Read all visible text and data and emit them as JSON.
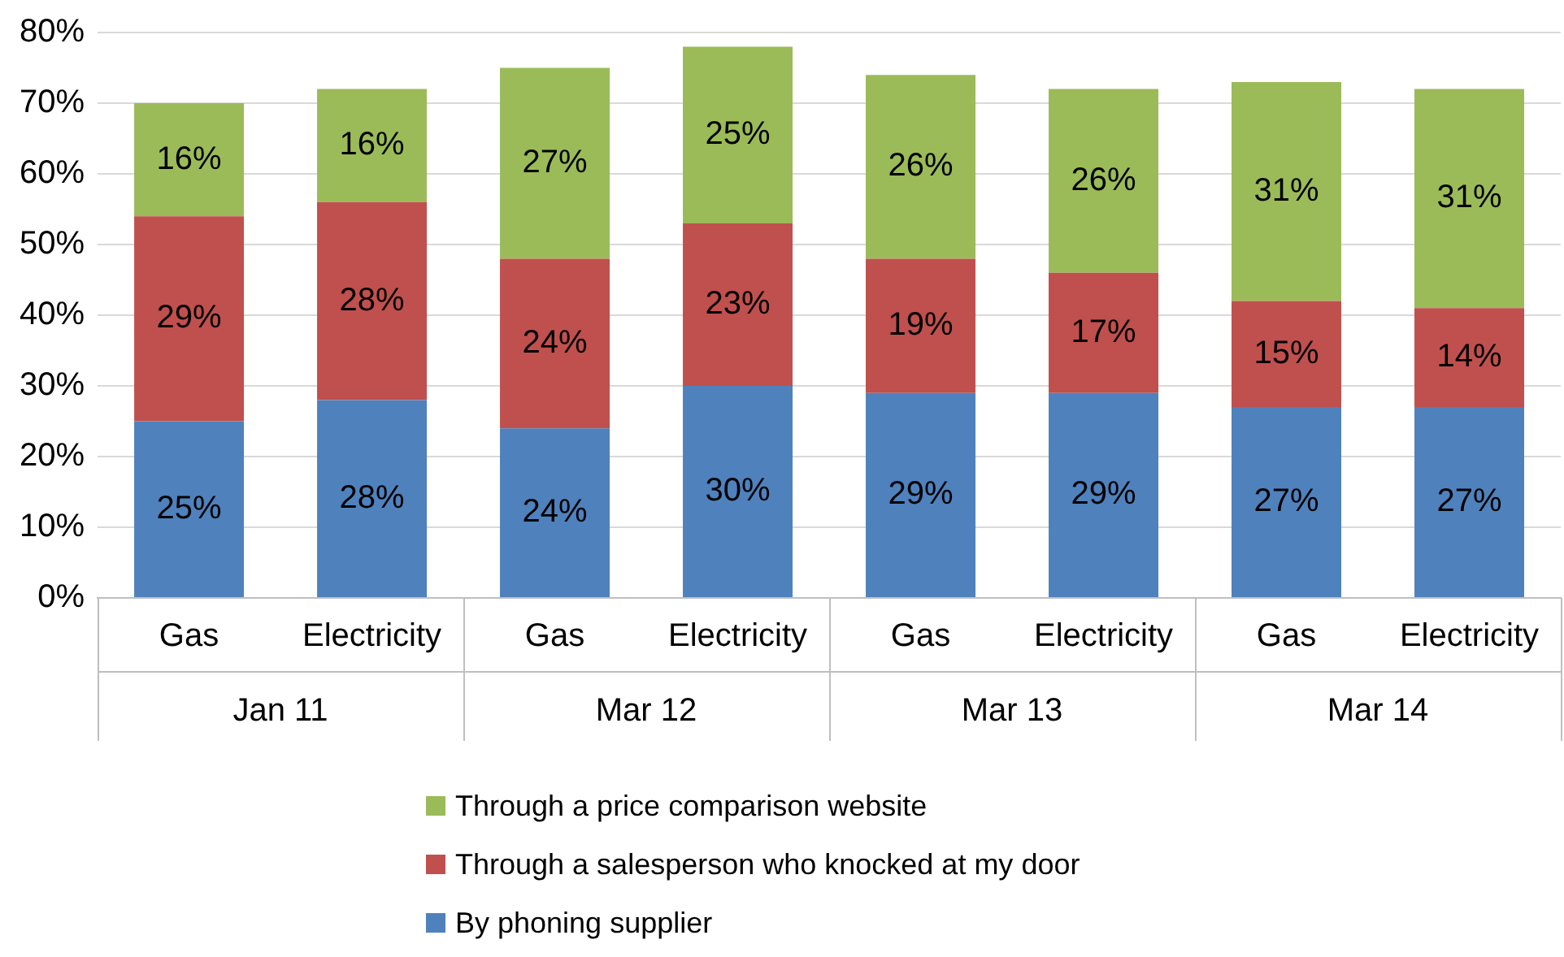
{
  "chart_data": {
    "type": "bar",
    "stacked": true,
    "categories": [
      "Gas",
      "Electricity",
      "Gas",
      "Electricity",
      "Gas",
      "Electricity",
      "Gas",
      "Electricity"
    ],
    "series": [
      {
        "name": "By phoning supplier",
        "color": "#4f81bd",
        "values": [
          25,
          28,
          24,
          30,
          29,
          29,
          27,
          27
        ],
        "value_labels": [
          "25%",
          "28%",
          "24%",
          "30%",
          "29%",
          "29%",
          "27%",
          "27%"
        ]
      },
      {
        "name": "Through a salesperson who knocked at my door",
        "color": "#c0504d",
        "values": [
          29,
          28,
          24,
          23,
          19,
          17,
          15,
          14
        ],
        "value_labels": [
          "29%",
          "28%",
          "24%",
          "23%",
          "19%",
          "17%",
          "15%",
          "14%"
        ]
      },
      {
        "name": "Through a price comparison website",
        "color": "#9bbb59",
        "values": [
          16,
          16,
          27,
          25,
          26,
          26,
          31,
          31
        ],
        "value_labels": [
          "16%",
          "16%",
          "27%",
          "25%",
          "26%",
          "26%",
          "31%",
          "31%"
        ]
      }
    ],
    "ylim": [
      0,
      80
    ],
    "yticks": [
      {
        "value": 0,
        "label": "0%"
      },
      {
        "value": 10,
        "label": "10%"
      },
      {
        "value": 20,
        "label": "20%"
      },
      {
        "value": 30,
        "label": "30%"
      },
      {
        "value": 40,
        "label": "40%"
      },
      {
        "value": 50,
        "label": "50%"
      },
      {
        "value": 60,
        "label": "60%"
      },
      {
        "value": 70,
        "label": "70%"
      },
      {
        "value": 80,
        "label": "80%"
      }
    ],
    "grid": "y",
    "legend": "bottom",
    "annotations": [
      "Jan 11",
      "Mar 12",
      "Mar 13",
      "Mar 14"
    ]
  }
}
